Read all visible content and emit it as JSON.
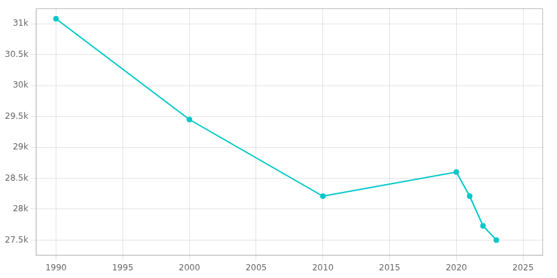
{
  "chart_data": {
    "type": "line",
    "x": [
      1990,
      2000,
      2010,
      2020,
      2021,
      2022,
      2023
    ],
    "values": [
      31082,
      29450,
      28210,
      28600,
      28210,
      27730,
      27500
    ],
    "color": "#00c8c8",
    "marker": "circle",
    "xlim": [
      1988.5,
      2026.5
    ],
    "xticks": [
      1990,
      1995,
      2000,
      2005,
      2010,
      2015,
      2020,
      2025
    ],
    "ylim": [
      27250,
      31250
    ],
    "yticks": [
      {
        "value": 27500,
        "label": "27.5k"
      },
      {
        "value": 28000,
        "label": "28k"
      },
      {
        "value": 28500,
        "label": "28.5k"
      },
      {
        "value": 29000,
        "label": "29k"
      },
      {
        "value": 29500,
        "label": "29.5k"
      },
      {
        "value": 30000,
        "label": "30k"
      },
      {
        "value": 30500,
        "label": "30.5k"
      },
      {
        "value": 31000,
        "label": "31k"
      }
    ],
    "grid": true
  }
}
